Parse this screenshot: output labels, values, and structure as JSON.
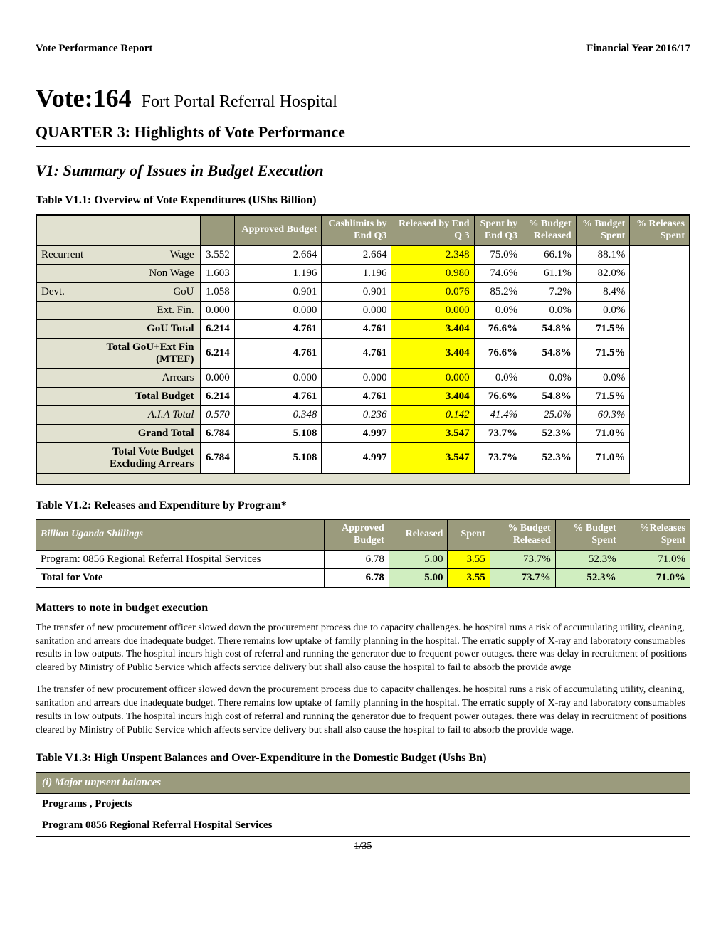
{
  "header": {
    "left": "Vote Performance Report",
    "right": "Financial Year 2016/17"
  },
  "vote": {
    "prefix": "Vote:164",
    "name": "Fort Portal Referral Hospital"
  },
  "quarter_title": "QUARTER 3: Highlights of Vote Performance",
  "v1_title": "V1: Summary of Issues in Budget Execution",
  "table_v11": {
    "caption": "Table V1.1: Overview of Vote Expenditures (UShs Billion)",
    "columns": [
      "",
      "",
      "Approved Budget",
      "Cashlimits by End Q3",
      "Released by End Q 3",
      "Spent by End Q3",
      "% Budget Released",
      "% Budget Spent",
      "% Releases Spent"
    ],
    "rows": [
      {
        "cat": "Recurrent",
        "sub": "Wage",
        "vals": [
          "3.552",
          "2.664",
          "2.664",
          "2.348",
          "75.0%",
          "66.1%",
          "88.1%"
        ],
        "style": ""
      },
      {
        "cat": "",
        "sub": "Non Wage",
        "vals": [
          "1.603",
          "1.196",
          "1.196",
          "0.980",
          "74.6%",
          "61.1%",
          "82.0%"
        ],
        "style": ""
      },
      {
        "cat": "Devt.",
        "sub": "GoU",
        "vals": [
          "1.058",
          "0.901",
          "0.901",
          "0.076",
          "85.2%",
          "7.2%",
          "8.4%"
        ],
        "style": ""
      },
      {
        "cat": "",
        "sub": "Ext. Fin.",
        "vals": [
          "0.000",
          "0.000",
          "0.000",
          "0.000",
          "0.0%",
          "0.0%",
          "0.0%"
        ],
        "style": ""
      },
      {
        "cat": "",
        "sub": "GoU Total",
        "vals": [
          "6.214",
          "4.761",
          "4.761",
          "3.404",
          "76.6%",
          "54.8%",
          "71.5%"
        ],
        "style": "bold"
      },
      {
        "cat": "",
        "sub": "Total GoU+Ext Fin (MTEF)",
        "vals": [
          "6.214",
          "4.761",
          "4.761",
          "3.404",
          "76.6%",
          "54.8%",
          "71.5%"
        ],
        "style": "bold"
      },
      {
        "cat": "",
        "sub": "Arrears",
        "vals": [
          "0.000",
          "0.000",
          "0.000",
          "0.000",
          "0.0%",
          "0.0%",
          "0.0%"
        ],
        "style": ""
      },
      {
        "cat": "",
        "sub": "Total Budget",
        "vals": [
          "6.214",
          "4.761",
          "4.761",
          "3.404",
          "76.6%",
          "54.8%",
          "71.5%"
        ],
        "style": "bold"
      },
      {
        "cat": "",
        "sub": "A.I.A Total",
        "vals": [
          "0.570",
          "0.348",
          "0.236",
          "0.142",
          "41.4%",
          "25.0%",
          "60.3%"
        ],
        "style": "italic"
      },
      {
        "cat": "",
        "sub": "Grand Total",
        "vals": [
          "6.784",
          "5.108",
          "4.997",
          "3.547",
          "73.7%",
          "52.3%",
          "71.0%"
        ],
        "style": "bold"
      },
      {
        "cat": "",
        "sub": "Total Vote Budget Excluding Arrears",
        "vals": [
          "6.784",
          "5.108",
          "4.997",
          "3.547",
          "73.7%",
          "52.3%",
          "71.0%"
        ],
        "style": "bold"
      }
    ],
    "header_bg": "#9b9b7d",
    "label_bg": "#e1e1d0",
    "spent_hl_bg": "#ffff00",
    "spent_col_index": 3
  },
  "table_v12": {
    "caption": "Table V1.2: Releases and Expenditure by Program*",
    "columns": [
      "Billion Uganda Shillings",
      "Approved Budget",
      "Released",
      "Spent",
      "% Budget Released",
      "% Budget Spent",
      "%Releases Spent"
    ],
    "rows": [
      {
        "cells": [
          "Program: 0856 Regional Referral Hospital Services",
          "6.78",
          "5.00",
          "3.55",
          "73.7%",
          "52.3%",
          "71.0%"
        ],
        "style": ""
      },
      {
        "cells": [
          "Total for Vote",
          "6.78",
          "5.00",
          "3.55",
          "73.7%",
          "52.3%",
          "71.0%"
        ],
        "style": "bold"
      }
    ],
    "released_col": 2,
    "spent_col": 3,
    "pct_cols": [
      4,
      5,
      6
    ],
    "green_bg": "#d0eec0",
    "yellow_bg": "#ffff00"
  },
  "matters": {
    "title": "Matters to note in budget execution",
    "para1": "The transfer of new procurement officer slowed down the procurement process due to capacity challenges. he hospital runs a risk of accumulating utility, cleaning, sanitation and arrears due inadequate budget. There remains low uptake of family planning in the hospital. The erratic supply of X-ray and laboratory consumables results in low outputs.  The hospital incurs  high cost of referral and running the generator due to frequent power outages. there was delay in recruitment of positions cleared by Ministry of Public Service which affects service delivery but shall also cause the hospital to fail to absorb the provide awge",
    "para2": "The transfer of new procurement officer slowed down the procurement process due to capacity challenges. he hospital runs a risk of accumulating utility, cleaning, sanitation and arrears due inadequate budget. There remains low uptake of family planning in the hospital. The erratic supply of X-ray and laboratory consumables results in low outputs.  The hospital incurs  high cost of referral and running the generator due to frequent power outages. there was delay in recruitment of positions cleared by Ministry of Public Service which affects service delivery but shall also cause the hospital to fail to absorb the provide wage."
  },
  "table_v13": {
    "caption": "Table V1.3: High Unspent Balances and Over-Expenditure in the Domestic Budget (Ushs Bn)",
    "rows": [
      {
        "text": "(i) Major unpsent balances",
        "cls": "hdr"
      },
      {
        "text": "Programs , Projects",
        "cls": "bold"
      },
      {
        "text": "Program 0856 Regional Referral Hospital Services",
        "cls": "bold"
      }
    ]
  },
  "page_number": "1/35"
}
